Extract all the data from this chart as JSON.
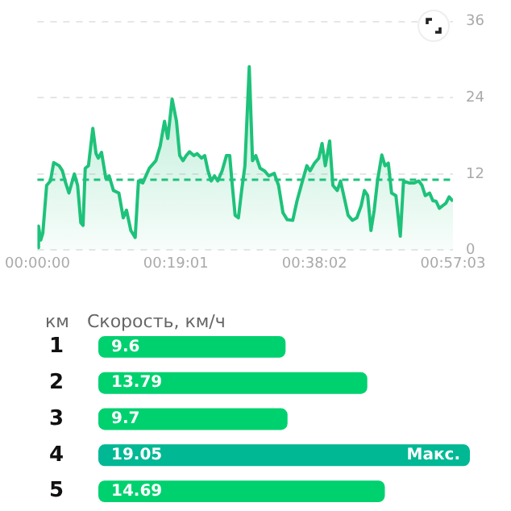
{
  "chart_data": [
    {
      "type": "area",
      "x": [
        0,
        0.0025,
        0.0075,
        0.0124,
        0.0211,
        0.0298,
        0.0373,
        0.0497,
        0.0572,
        0.0646,
        0.0721,
        0.0771,
        0.0845,
        0.092,
        0.0994,
        0.1044,
        0.1094,
        0.1168,
        0.1268,
        0.1342,
        0.1392,
        0.1467,
        0.1566,
        0.1641,
        0.174,
        0.1864,
        0.1964,
        0.2038,
        0.2138,
        0.2237,
        0.2312,
        0.2411,
        0.256,
        0.271,
        0.2809,
        0.2908,
        0.2983,
        0.3082,
        0.3182,
        0.3256,
        0.3331,
        0.3405,
        0.348,
        0.358,
        0.3654,
        0.3754,
        0.3828,
        0.3903,
        0.3977,
        0.4052,
        0.4126,
        0.4226,
        0.4325,
        0.44,
        0.445,
        0.4524,
        0.4599,
        0.4673,
        0.4748,
        0.4847,
        0.4922,
        0.4996,
        0.5096,
        0.5195,
        0.5295,
        0.5419,
        0.5518,
        0.5618,
        0.5717,
        0.5842,
        0.5941,
        0.6065,
        0.6165,
        0.6239,
        0.6339,
        0.6438,
        0.6513,
        0.6587,
        0.6687,
        0.6761,
        0.6861,
        0.6935,
        0.701,
        0.7109,
        0.7209,
        0.7308,
        0.7408,
        0.7482,
        0.7557,
        0.7632,
        0.7706,
        0.7781,
        0.788,
        0.7954,
        0.8029,
        0.8104,
        0.8203,
        0.8303,
        0.8377,
        0.8501,
        0.8626,
        0.8725,
        0.88,
        0.8874,
        0.8974,
        0.9048,
        0.9123,
        0.9197,
        0.9272,
        0.9347,
        0.9421,
        0.9508
      ],
      "series": [
        {
          "color": "#1ec27a",
          "values": [
            0.4,
            3.8,
            1.6,
            2.7,
            10.2,
            10.9,
            13.8,
            13.3,
            12.5,
            10.6,
            9.0,
            10.2,
            12.0,
            10.2,
            4.3,
            3.9,
            12.9,
            13.3,
            19.2,
            15.2,
            14.5,
            15.4,
            11.3,
            11.7,
            9.4,
            9.0,
            5.1,
            6.3,
            3.1,
            2.0,
            10.9,
            10.6,
            12.9,
            14.1,
            16.4,
            20.3,
            17.6,
            23.8,
            20.3,
            14.9,
            14.1,
            14.9,
            15.5,
            14.9,
            15.2,
            14.5,
            14.9,
            12.5,
            10.9,
            11.7,
            10.9,
            12.5,
            14.9,
            14.9,
            10.9,
            5.5,
            5.1,
            9.4,
            13.3,
            28.9,
            14.1,
            14.9,
            12.9,
            12.5,
            11.7,
            12.1,
            10.2,
            5.9,
            4.8,
            4.7,
            7.8,
            10.9,
            13.3,
            12.5,
            13.7,
            14.5,
            16.8,
            13.3,
            17.2,
            10.2,
            9.4,
            10.9,
            8.6,
            5.5,
            4.7,
            5.1,
            7.0,
            9.4,
            8.6,
            3.1,
            6.3,
            10.9,
            15.0,
            13.3,
            13.7,
            9.0,
            8.6,
            2.2,
            10.9,
            10.6,
            10.6,
            10.9,
            10.2,
            8.6,
            9.0,
            7.8,
            7.7,
            6.6,
            7.0,
            7.4,
            8.4,
            7.7
          ]
        }
      ],
      "xlim": [
        0,
        0.95083
      ],
      "xticks": [
        {
          "value": 0,
          "label": "00:00:00"
        },
        {
          "value": 0.31694,
          "label": "00:19:01"
        },
        {
          "value": 0.63389,
          "label": "00:38:02"
        },
        {
          "value": 0.95083,
          "label": "00:57:03"
        }
      ],
      "ylim": [
        0,
        36
      ],
      "yticks": [
        0,
        12,
        24,
        36
      ],
      "grid": "y",
      "legend": false,
      "marker": "none",
      "ref_lines": [
        {
          "axis": "y",
          "value": 11.1,
          "color": "#1ec27a",
          "line_style": "dashed"
        }
      ]
    },
    {
      "type": "bar",
      "orientation": "horizontal",
      "ylabel": "км",
      "xlabel": "Скорость, км/ч",
      "categories": [
        "1",
        "2",
        "3",
        "4",
        "5"
      ],
      "values": [
        9.6,
        13.79,
        9.7,
        19.05,
        14.69
      ],
      "colors": [
        "#00d16f",
        "#00d16f",
        "#00d16f",
        "#00b894",
        "#00d16f"
      ],
      "data_labels": true,
      "tick_labels": "y",
      "grid": false,
      "legend": false,
      "annotations": [
        {
          "text": "Макс.",
          "x": 19.05,
          "y": "4"
        }
      ]
    }
  ]
}
